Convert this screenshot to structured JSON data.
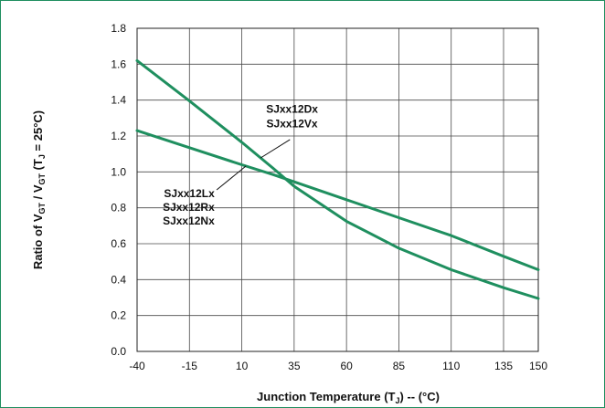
{
  "chart_data": {
    "type": "line",
    "xlabel": {
      "prefix": "Junction Temperature (T",
      "sub": "J",
      "suffix": ") -- (°C)"
    },
    "ylabel": {
      "p1": "Ratio of  V",
      "sub1": "GT",
      "p2": " / V",
      "sub2": "GT",
      "p3": "  (T",
      "sub3": "J",
      "p4": " = 25°C)"
    },
    "xlim": [
      -40,
      150
    ],
    "ylim": [
      0,
      1.8
    ],
    "x_ticks": [
      -40,
      -15,
      10,
      35,
      60,
      85,
      110,
      135,
      150
    ],
    "y_ticks": [
      "0.0",
      "0.2",
      "0.4",
      "0.6",
      "0.8",
      "1.0",
      "1.2",
      "1.4",
      "1.6",
      "1.8"
    ],
    "grid": true,
    "line_color": "#1f8f5f",
    "series": [
      {
        "labels": [
          "SJxx12Dx",
          "SJxx12Vx"
        ],
        "x": [
          -40,
          -15,
          10,
          25,
          35,
          60,
          85,
          110,
          135,
          150
        ],
        "y": [
          1.62,
          1.395,
          1.165,
          1.02,
          0.92,
          0.725,
          0.575,
          0.455,
          0.355,
          0.295
        ]
      },
      {
        "labels": [
          "SJxx12Lx",
          "SJxx12Rx",
          "SJxx12Nx"
        ],
        "x": [
          -40,
          -15,
          10,
          25,
          35,
          60,
          85,
          110,
          135,
          150
        ],
        "y": [
          1.23,
          1.135,
          1.04,
          0.985,
          0.945,
          0.845,
          0.745,
          0.645,
          0.53,
          0.455
        ]
      }
    ]
  }
}
